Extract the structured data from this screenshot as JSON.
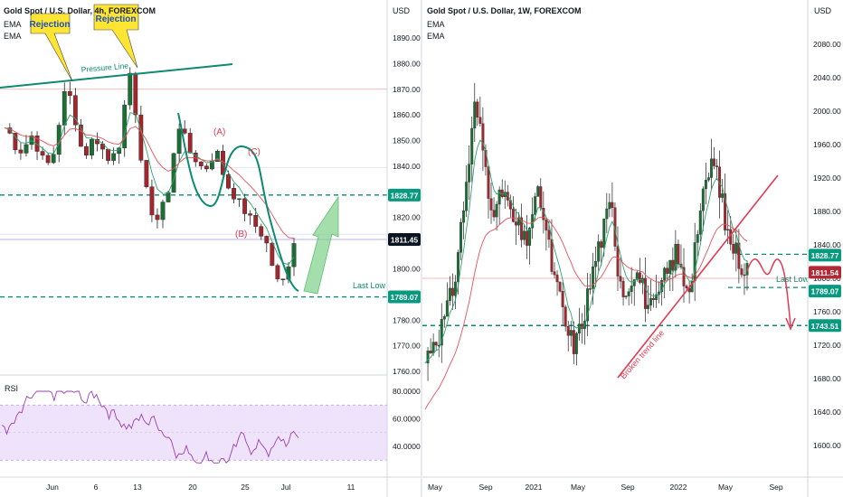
{
  "left_chart": {
    "title": "Gold Spot / U.S. Dollar, 4h, FOREXCOM",
    "indicators": [
      "EMA",
      "EMA"
    ],
    "currency": "USD",
    "price_ticks": [
      "1890.00",
      "1880.00",
      "1870.00",
      "1860.00",
      "1850.00",
      "1840.00",
      "1830.00",
      "1820.00",
      "1810.00",
      "1800.00",
      "1790.00",
      "1780.00",
      "1770.00",
      "1760.00"
    ],
    "time_ticks": [
      "Jun",
      "6",
      "13",
      "20",
      "25",
      "Jul",
      "11"
    ],
    "rsi_label": "RSI",
    "rsi_ticks": [
      "80.0000",
      "60.0000",
      "40.0000"
    ],
    "annotations": {
      "rejection_1": "Rejection",
      "rejection_2": "Rejection",
      "pressure_line": "Pressure Line",
      "wave_a": "(A)",
      "wave_b": "(B)",
      "wave_c": "(C)",
      "last_low": "Last Low"
    },
    "price_badges": [
      {
        "label": "1828.77",
        "color": "#089981"
      },
      {
        "label": "1811.45",
        "color": "#0b1521"
      },
      {
        "label": "1789.07",
        "color": "#089981"
      }
    ]
  },
  "right_chart": {
    "title": "Gold Spot / U.S. Dollar, 1W, FOREXCOM",
    "indicators": [
      "EMA",
      "EMA"
    ],
    "currency": "USD",
    "price_ticks": [
      "2080.00",
      "2040.00",
      "2000.00",
      "1960.00",
      "1920.00",
      "1880.00",
      "1840.00",
      "1800.00",
      "1760.00",
      "1720.00",
      "1680.00",
      "1640.00",
      "1600.00"
    ],
    "time_ticks": [
      "May",
      "Sep",
      "2021",
      "May",
      "Sep",
      "2022",
      "May",
      "Sep"
    ],
    "annotations": {
      "broken_trend_line": "Broken trend line",
      "last_low": "Last Low"
    },
    "price_badges": [
      {
        "label": "1828.77",
        "color": "#089981"
      },
      {
        "label": "1811.54",
        "color": "#b22833"
      },
      {
        "label": "1789.07",
        "color": "#089981"
      },
      {
        "label": "1743.51",
        "color": "#089981"
      }
    ]
  },
  "colors": {
    "bull": "#26a69a",
    "bear": "#e33e3e",
    "candle_body_bull": "#1b6e34",
    "candle_body_bear": "#a3262f",
    "annotation_green": "#0d8a72",
    "annotation_red": "#e23a52",
    "rsi_line": "#9b3fb5",
    "rsi_band": "#efe3fb"
  },
  "chart_data": [
    {
      "type": "candlestick",
      "title": "Gold Spot / U.S. Dollar, 4h, FOREXCOM",
      "ylabel": "USD",
      "ylim": [
        1752,
        1896
      ],
      "x": [
        "Jun",
        "6",
        "13",
        "20",
        "25",
        "Jul",
        "11"
      ],
      "close_path_approx": [
        1855,
        1852,
        1845,
        1848,
        1852,
        1846,
        1840,
        1843,
        1858,
        1872,
        1862,
        1848,
        1845,
        1852,
        1848,
        1842,
        1847,
        1850,
        1878,
        1862,
        1838,
        1825,
        1818,
        1826,
        1830,
        1858,
        1852,
        1845,
        1842,
        1838,
        1843,
        1845,
        1834,
        1830,
        1826,
        1822,
        1818,
        1815,
        1810,
        1800,
        1792,
        1800,
        1811
      ],
      "horizontal_levels": [
        1828.77,
        1811.45,
        1789.07,
        1870.0
      ],
      "last_price": 1811.45,
      "rsi": {
        "ylim": [
          20,
          90
        ],
        "bands": [
          70,
          30
        ]
      }
    },
    {
      "type": "candlestick",
      "title": "Gold Spot / U.S. Dollar, 1W, FOREXCOM",
      "ylabel": "USD",
      "ylim": [
        1575,
        2105
      ],
      "x": [
        "May",
        "Sep",
        "2021",
        "May",
        "Sep",
        "2022",
        "May",
        "Sep"
      ],
      "close_path_approx": [
        1700,
        1725,
        1735,
        1760,
        1790,
        1860,
        1930,
        2010,
        1960,
        1900,
        1880,
        1910,
        1870,
        1860,
        1840,
        1880,
        1900,
        1850,
        1800,
        1770,
        1730,
        1720,
        1750,
        1790,
        1830,
        1860,
        1890,
        1810,
        1780,
        1810,
        1800,
        1770,
        1760,
        1790,
        1810,
        1830,
        1800,
        1790,
        1860,
        1900,
        1940,
        1920,
        1860,
        1840,
        1820,
        1811
      ],
      "horizontal_levels": [
        1828.77,
        1811.54,
        1789.07,
        1743.51
      ],
      "last_price": 1811.54
    }
  ]
}
